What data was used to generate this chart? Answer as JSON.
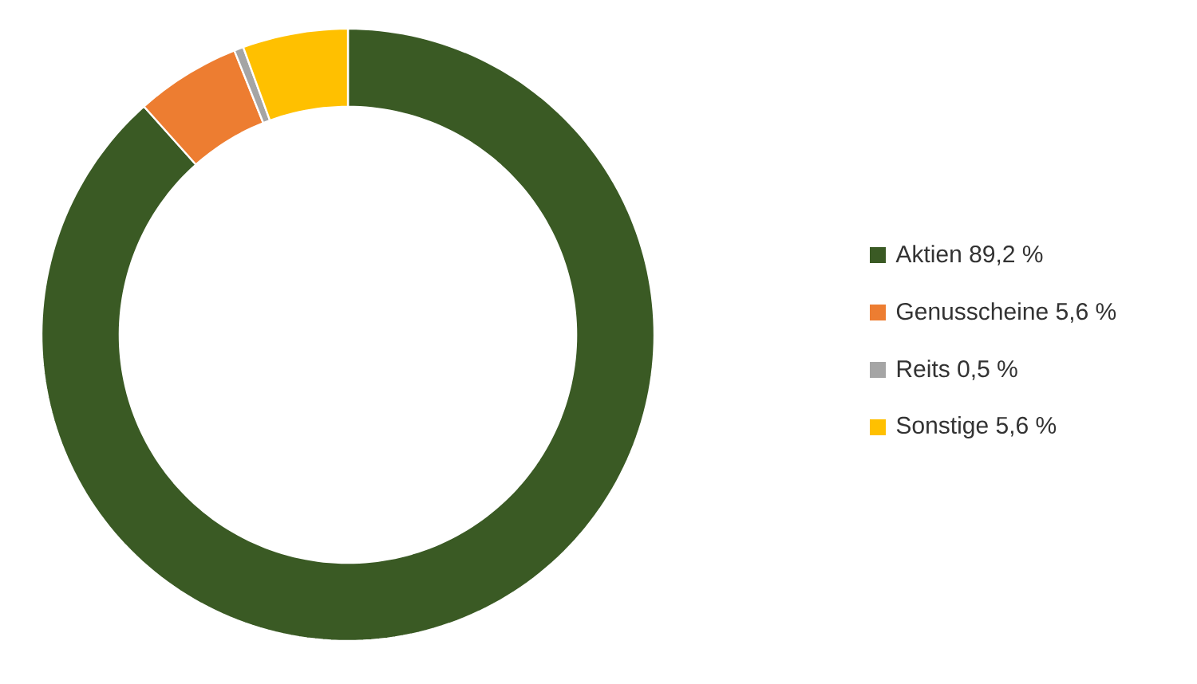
{
  "chart_data": {
    "type": "donut",
    "categories": [
      "Aktien",
      "Genusscheine",
      "Reits",
      "Sonstige"
    ],
    "values": [
      89.2,
      5.6,
      0.5,
      5.6
    ],
    "value_labels": [
      "89,2 %",
      "5,6 %",
      "0,5 %",
      "5,6 %"
    ],
    "colors": [
      "#3a5a24",
      "#ed7d31",
      "#a5a5a5",
      "#ffc000"
    ],
    "legend": "right"
  }
}
